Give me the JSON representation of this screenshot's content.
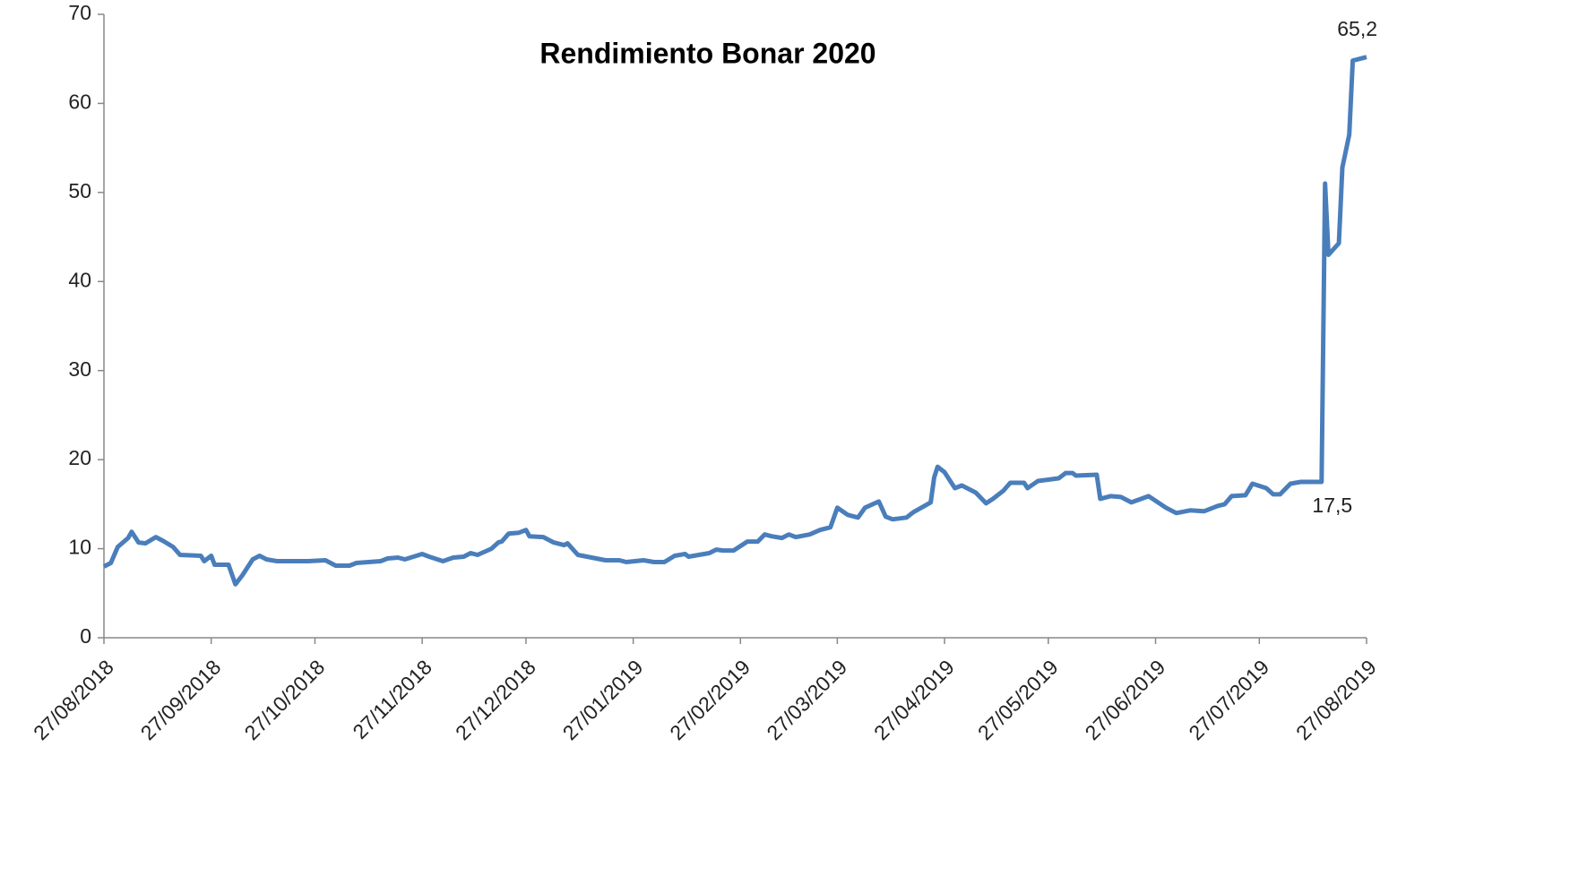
{
  "chart_data": {
    "type": "line",
    "title": "Rendimiento Bonar 2020",
    "x": [
      "27/08/2018",
      "29/08/2018",
      "31/08/2018",
      "03/09/2018",
      "04/09/2018",
      "06/09/2018",
      "08/09/2018",
      "11/09/2018",
      "13/09/2018",
      "16/09/2018",
      "18/09/2018",
      "24/09/2018",
      "25/09/2018",
      "27/09/2018",
      "28/09/2018",
      "02/10/2018",
      "04/10/2018",
      "06/10/2018",
      "09/10/2018",
      "11/10/2018",
      "13/10/2018",
      "16/10/2018",
      "25/10/2018",
      "30/10/2018",
      "02/11/2018",
      "06/11/2018",
      "08/11/2018",
      "15/11/2018",
      "17/11/2018",
      "20/11/2018",
      "22/11/2018",
      "27/11/2018",
      "29/11/2018",
      "03/12/2018",
      "06/12/2018",
      "09/12/2018",
      "11/12/2018",
      "13/12/2018",
      "17/12/2018",
      "19/12/2018",
      "20/12/2018",
      "22/12/2018",
      "25/12/2018",
      "27/12/2018",
      "28/12/2018",
      "01/01/2019",
      "04/01/2019",
      "07/01/2019",
      "08/01/2019",
      "11/01/2019",
      "15/01/2019",
      "19/01/2019",
      "23/01/2019",
      "25/01/2019",
      "30/01/2019",
      "02/02/2019",
      "05/02/2019",
      "08/02/2019",
      "11/02/2019",
      "12/02/2019",
      "18/02/2019",
      "20/02/2019",
      "22/02/2019",
      "25/02/2019",
      "01/03/2019",
      "04/03/2019",
      "06/03/2019",
      "08/03/2019",
      "11/03/2019",
      "13/03/2019",
      "15/03/2019",
      "19/03/2019",
      "22/03/2019",
      "25/03/2019",
      "27/03/2019",
      "30/03/2019",
      "02/04/2019",
      "04/04/2019",
      "08/04/2019",
      "10/04/2019",
      "12/04/2019",
      "16/04/2019",
      "18/04/2019",
      "23/04/2019",
      "24/04/2019",
      "25/04/2019",
      "27/04/2019",
      "30/04/2019",
      "02/05/2019",
      "06/05/2019",
      "09/05/2019",
      "11/05/2019",
      "14/05/2019",
      "16/05/2019",
      "20/05/2019",
      "21/05/2019",
      "24/05/2019",
      "30/05/2019",
      "01/06/2019",
      "03/06/2019",
      "04/06/2019",
      "10/06/2019",
      "11/06/2019",
      "14/06/2019",
      "17/06/2019",
      "20/06/2019",
      "25/06/2019",
      "30/06/2019",
      "03/07/2019",
      "07/07/2019",
      "11/07/2019",
      "15/07/2019",
      "17/07/2019",
      "19/07/2019",
      "23/07/2019",
      "25/07/2019",
      "29/07/2019",
      "31/07/2019",
      "02/08/2019",
      "05/08/2019",
      "08/08/2019",
      "14/08/2019",
      "15/08/2019",
      "16/08/2019",
      "19/08/2019",
      "20/08/2019",
      "22/08/2019",
      "23/08/2019",
      "27/08/2019"
    ],
    "series": [
      {
        "color": "#4a7ebb",
        "values": [
          8.0,
          8.4,
          10.2,
          11.2,
          11.9,
          10.7,
          10.6,
          11.3,
          10.9,
          10.2,
          9.3,
          9.2,
          8.6,
          9.2,
          8.2,
          8.2,
          6.0,
          7.0,
          8.8,
          9.2,
          8.8,
          8.6,
          8.6,
          8.7,
          8.1,
          8.1,
          8.4,
          8.6,
          8.9,
          9.0,
          8.8,
          9.4,
          9.1,
          8.6,
          9.0,
          9.1,
          9.5,
          9.3,
          10.0,
          10.7,
          10.8,
          11.7,
          11.8,
          12.1,
          11.4,
          11.3,
          10.7,
          10.4,
          10.6,
          9.3,
          9.0,
          8.7,
          8.7,
          8.5,
          8.7,
          8.5,
          8.5,
          9.2,
          9.4,
          9.1,
          9.5,
          9.9,
          9.8,
          9.8,
          10.8,
          10.8,
          11.6,
          11.4,
          11.2,
          11.6,
          11.3,
          11.6,
          12.1,
          12.4,
          14.6,
          13.8,
          13.5,
          14.6,
          15.3,
          13.6,
          13.3,
          13.5,
          14.1,
          15.2,
          18.0,
          19.2,
          18.6,
          16.8,
          17.1,
          16.3,
          15.1,
          15.6,
          16.5,
          17.4,
          17.4,
          16.8,
          17.6,
          17.9,
          18.5,
          18.5,
          18.2,
          18.3,
          15.6,
          15.9,
          15.8,
          15.2,
          15.9,
          14.6,
          14.0,
          14.3,
          14.2,
          14.8,
          15.0,
          15.9,
          16.0,
          17.3,
          16.8,
          16.1,
          16.1,
          17.3,
          17.5,
          17.5,
          51.0,
          43.0,
          44.3,
          52.8,
          56.5,
          64.8,
          65.2
        ]
      }
    ],
    "xlim": [
      "27/08/2018",
      "27/08/2019"
    ],
    "xticks": [
      "27/08/2018",
      "27/09/2018",
      "27/10/2018",
      "27/11/2018",
      "27/12/2018",
      "27/01/2019",
      "27/02/2019",
      "27/03/2019",
      "27/04/2019",
      "27/05/2019",
      "27/06/2019",
      "27/07/2019",
      "27/08/2019"
    ],
    "ylim": [
      0,
      70
    ],
    "yticks": [
      0,
      10,
      20,
      30,
      40,
      50,
      60,
      70
    ],
    "grid": false,
    "annotations": [
      {
        "x": "14/08/2019",
        "y": 17.5,
        "label": "17,5"
      },
      {
        "x": "27/08/2019",
        "y": 65.2,
        "label": "65,2"
      }
    ]
  }
}
